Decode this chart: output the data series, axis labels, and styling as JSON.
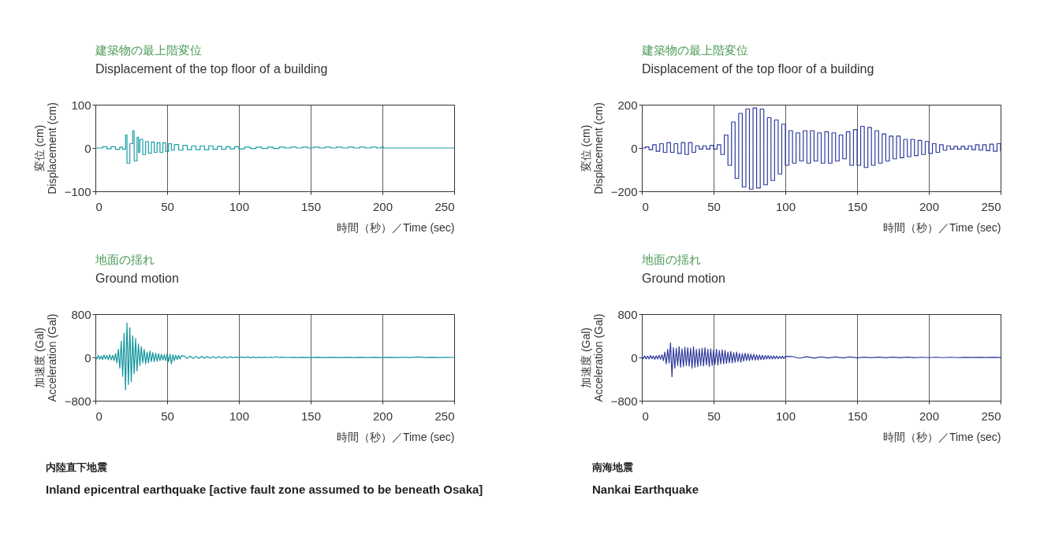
{
  "chart_data": [
    {
      "type": "step",
      "title": "建築物の最上階変位",
      "subtitle": "Displacement of the top floor of a building",
      "xlabel": "時間（秒）／Time (sec)",
      "ylabel": "変位 (cm)\nDisplacement (cm)",
      "xlim": [
        0,
        250
      ],
      "xticks": [
        0,
        50,
        100,
        150,
        200,
        250
      ],
      "ylim": [
        -100,
        100
      ],
      "yticks": [
        -100,
        0,
        100
      ],
      "grid": "x",
      "x": [
        0,
        5,
        8,
        11,
        14,
        17,
        19,
        21,
        22,
        24,
        26,
        27,
        29,
        30,
        31,
        33,
        35,
        37,
        39,
        41,
        43,
        45,
        47,
        49,
        51,
        53,
        55,
        58,
        61,
        64,
        67,
        70,
        73,
        76,
        79,
        82,
        85,
        88,
        91,
        94,
        97,
        100,
        104,
        108,
        112,
        116,
        120,
        124,
        128,
        132,
        136,
        140,
        144,
        148,
        152,
        156,
        160,
        164,
        168,
        172,
        176,
        180,
        184,
        188,
        192,
        196,
        199,
        201,
        250
      ],
      "series": [
        {
          "color": "#1a9ea6",
          "values": [
            0,
            3,
            -2,
            3,
            -3,
            2,
            -3,
            30,
            -35,
            10,
            40,
            -30,
            25,
            -10,
            20,
            -15,
            15,
            -12,
            14,
            -10,
            12,
            -10,
            12,
            -8,
            10,
            -5,
            8,
            -5,
            6,
            -4,
            5,
            -4,
            5,
            -4,
            5,
            -3,
            4,
            -3,
            3,
            -2,
            3,
            -2,
            2,
            -1,
            2,
            -1,
            2,
            -1,
            2,
            0,
            2,
            0,
            2,
            0,
            2,
            0,
            2,
            0,
            2,
            0,
            2,
            0,
            2,
            0,
            2,
            0,
            2,
            0,
            0
          ]
        }
      ]
    },
    {
      "type": "step",
      "title": "建築物の最上階変位",
      "subtitle": "Displacement of the top floor of a building",
      "xlabel": "時間（秒）／Time (sec)",
      "ylabel": "変位 (cm)\nDisplacement (cm)",
      "xlim": [
        0,
        250
      ],
      "xticks": [
        0,
        50,
        100,
        150,
        200,
        250
      ],
      "ylim": [
        -200,
        200
      ],
      "yticks": [
        -200,
        0,
        200
      ],
      "grid": "x",
      "x": [
        0,
        2.5,
        5,
        7.5,
        10,
        12.5,
        15,
        17.5,
        20,
        22.5,
        25,
        27.5,
        30,
        32.5,
        35,
        37.5,
        40,
        42.5,
        45,
        47.5,
        50,
        52.5,
        55,
        57.5,
        60,
        62.5,
        65,
        67.5,
        70,
        72.5,
        75,
        77.5,
        80,
        82.5,
        85,
        87.5,
        90,
        92.5,
        95,
        97.5,
        100,
        102.5,
        105,
        107.5,
        110,
        112.5,
        115,
        117.5,
        120,
        122.5,
        125,
        127.5,
        130,
        132.5,
        135,
        137.5,
        140,
        142.5,
        145,
        147.5,
        150,
        152.5,
        155,
        157.5,
        160,
        162.5,
        165,
        167.5,
        170,
        172.5,
        175,
        177.5,
        180,
        182.5,
        185,
        187.5,
        190,
        192.5,
        195,
        197.5,
        200,
        202.5,
        205,
        207.5,
        210,
        212.5,
        215,
        217.5,
        220,
        222.5,
        225,
        227.5,
        230,
        232.5,
        235,
        237.5,
        240,
        242.5,
        245,
        247.5,
        250
      ],
      "series": [
        {
          "color": "#2e3b9c",
          "values": [
            0,
            5,
            -8,
            15,
            -15,
            20,
            -20,
            25,
            -20,
            20,
            -25,
            25,
            -30,
            25,
            -20,
            10,
            -5,
            10,
            -5,
            12,
            -5,
            15,
            -30,
            60,
            -80,
            120,
            -140,
            160,
            -180,
            180,
            -190,
            185,
            -185,
            180,
            -170,
            140,
            -150,
            130,
            -120,
            110,
            -80,
            80,
            -70,
            70,
            -60,
            80,
            -70,
            80,
            -60,
            70,
            -70,
            75,
            -70,
            70,
            -60,
            60,
            -50,
            75,
            -80,
            85,
            -80,
            100,
            -90,
            95,
            -80,
            80,
            -70,
            65,
            -60,
            55,
            -50,
            55,
            -45,
            40,
            -40,
            40,
            -35,
            35,
            -30,
            30,
            -25,
            20,
            -20,
            15,
            -10,
            10,
            -5,
            8,
            -5,
            8,
            -5,
            10,
            -8,
            15,
            -10,
            15,
            -12,
            18,
            -15,
            20,
            -15
          ]
        }
      ]
    },
    {
      "type": "line",
      "title": "地面の揺れ",
      "subtitle": "Ground motion",
      "xlabel": "時間（秒）／Time (sec)",
      "ylabel": "加速度 (Gal)\nAcceleration (Gal)",
      "xlim": [
        0,
        250
      ],
      "xticks": [
        0,
        50,
        100,
        150,
        200,
        250
      ],
      "ylim": [
        -800,
        800
      ],
      "yticks": [
        -800,
        0,
        800
      ],
      "grid": "x",
      "annotations": [
        "内陸直下地震",
        "Inland epicentral earthquake [active fault zone assumed to be beneath Osaka]"
      ],
      "x": [
        0,
        1,
        2,
        3,
        4,
        5,
        6,
        7,
        8,
        9,
        10,
        11,
        12,
        13,
        14,
        15,
        16,
        17,
        18,
        19,
        20,
        21,
        22,
        23,
        24,
        25,
        26,
        27,
        28,
        29,
        30,
        31,
        32,
        33,
        34,
        35,
        36,
        37,
        38,
        39,
        40,
        41,
        42,
        43,
        44,
        45,
        46,
        47,
        48,
        49,
        50,
        51,
        52,
        53,
        54,
        55,
        56,
        57,
        58,
        59,
        60,
        62,
        64,
        66,
        68,
        70,
        72,
        74,
        76,
        78,
        80,
        82,
        84,
        86,
        88,
        90,
        92,
        94,
        96,
        98,
        100,
        102,
        104,
        106,
        108,
        110,
        112,
        114,
        116,
        118,
        120,
        122,
        124,
        126,
        128,
        130,
        132,
        134,
        136,
        138,
        140,
        145,
        150,
        155,
        160,
        165,
        170,
        175,
        180,
        185,
        190,
        195,
        200,
        205,
        210,
        215,
        220,
        225,
        230,
        235,
        240,
        245,
        250
      ],
      "series": [
        {
          "color": "#10959c",
          "values": [
            20,
            -30,
            40,
            -35,
            30,
            -40,
            45,
            -30,
            35,
            -40,
            50,
            -45,
            40,
            -60,
            70,
            -100,
            150,
            -200,
            300,
            -350,
            450,
            -600,
            640,
            -500,
            550,
            -450,
            400,
            -300,
            350,
            -250,
            250,
            -150,
            200,
            -100,
            150,
            -120,
            100,
            -100,
            120,
            -80,
            90,
            -80,
            80,
            -70,
            70,
            -60,
            60,
            -50,
            50,
            -60,
            70,
            -80,
            60,
            -120,
            50,
            -60,
            40,
            -40,
            40,
            -30,
            30,
            25,
            -20,
            25,
            -20,
            20,
            -18,
            20,
            -15,
            18,
            -15,
            15,
            -12,
            15,
            -10,
            12,
            -10,
            12,
            -8,
            10,
            -8,
            10,
            -6,
            8,
            -6,
            8,
            -5,
            6,
            -5,
            6,
            -4,
            5,
            -4,
            15,
            -3,
            5,
            -3,
            4,
            -2,
            3,
            -2,
            2,
            -2,
            2,
            -1,
            1,
            -1,
            1,
            -1,
            1,
            -1,
            1,
            -1,
            1,
            -1,
            1,
            -1,
            10,
            -1,
            1,
            -1,
            1,
            0
          ]
        }
      ]
    },
    {
      "type": "line",
      "title": "地面の揺れ",
      "subtitle": "Ground motion",
      "xlabel": "時間（秒）／Time (sec)",
      "ylabel": "加速度 (Gal)\nAcceleration (Gal)",
      "xlim": [
        0,
        250
      ],
      "xticks": [
        0,
        50,
        100,
        150,
        200,
        250
      ],
      "ylim": [
        -800,
        800
      ],
      "yticks": [
        -800,
        0,
        800
      ],
      "grid": "x",
      "annotations": [
        "南海地震",
        "Nankai Earthquake"
      ],
      "x": [
        0,
        1,
        2,
        3,
        4,
        5,
        6,
        7,
        8,
        9,
        10,
        11,
        12,
        13,
        14,
        15,
        16,
        17,
        18,
        19,
        20,
        21,
        22,
        23,
        24,
        25,
        26,
        27,
        28,
        29,
        30,
        31,
        32,
        33,
        34,
        35,
        36,
        37,
        38,
        39,
        40,
        41,
        42,
        43,
        44,
        45,
        46,
        47,
        48,
        49,
        50,
        51,
        52,
        53,
        54,
        55,
        56,
        57,
        58,
        59,
        60,
        61,
        62,
        63,
        64,
        65,
        66,
        67,
        68,
        69,
        70,
        71,
        72,
        73,
        74,
        75,
        76,
        77,
        78,
        79,
        80,
        81,
        82,
        83,
        84,
        85,
        86,
        87,
        88,
        89,
        90,
        91,
        92,
        93,
        94,
        95,
        96,
        97,
        98,
        99,
        100,
        105,
        110,
        115,
        120,
        125,
        130,
        135,
        140,
        145,
        150,
        155,
        160,
        165,
        170,
        175,
        180,
        185,
        190,
        195,
        200,
        205,
        210,
        215,
        220,
        225,
        230,
        235,
        240,
        245,
        250
      ],
      "series": [
        {
          "color": "#2e3b9c",
          "values": [
            20,
            -25,
            30,
            -30,
            25,
            -30,
            35,
            -25,
            30,
            -35,
            30,
            -30,
            40,
            -35,
            50,
            -60,
            100,
            -120,
            150,
            -100,
            267,
            -355,
            180,
            -200,
            170,
            -150,
            200,
            -180,
            160,
            -170,
            190,
            -150,
            180,
            -160,
            170,
            -200,
            200,
            -180,
            150,
            -170,
            160,
            -150,
            170,
            -160,
            180,
            -140,
            150,
            -170,
            160,
            -150,
            140,
            -130,
            150,
            -140,
            130,
            -120,
            140,
            -120,
            130,
            -110,
            100,
            -100,
            110,
            -100,
            90,
            -90,
            100,
            -80,
            80,
            -90,
            70,
            -70,
            80,
            -60,
            70,
            -60,
            60,
            -50,
            60,
            -50,
            50,
            -50,
            45,
            -40,
            40,
            -40,
            35,
            -30,
            35,
            -30,
            30,
            -30,
            30,
            -25,
            25,
            -25,
            20,
            -20,
            25,
            -20,
            20,
            15,
            -15,
            12,
            -12,
            10,
            -10,
            10,
            -8,
            8,
            -8,
            6,
            -6,
            6,
            -5,
            5,
            -5,
            5,
            -5,
            4,
            -4,
            4,
            -4,
            4,
            -4,
            3,
            -3,
            3,
            -3,
            3,
            -3
          ]
        }
      ]
    }
  ]
}
